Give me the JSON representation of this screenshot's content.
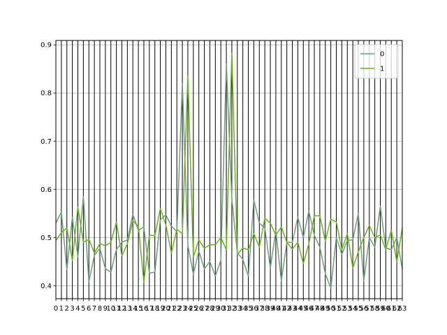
{
  "chart_data": {
    "type": "line",
    "title": "",
    "xlabel": "",
    "ylabel": "",
    "x": [
      0,
      1,
      2,
      3,
      4,
      5,
      6,
      7,
      8,
      9,
      10,
      11,
      12,
      13,
      14,
      15,
      16,
      17,
      18,
      19,
      20,
      21,
      22,
      23,
      24,
      25,
      26,
      27,
      28,
      29,
      30,
      31,
      32,
      33,
      34,
      35,
      36,
      37,
      38,
      39,
      40,
      41,
      42,
      43,
      44,
      45,
      46,
      47,
      48,
      49,
      50,
      51,
      52,
      53,
      54,
      55,
      56,
      57,
      58,
      59,
      60,
      61,
      62,
      63
    ],
    "x_tick_labels": [
      "0",
      "1",
      "2",
      "3",
      "4",
      "5",
      "6",
      "7",
      "8",
      "9",
      "10",
      "11",
      "12",
      "13",
      "14",
      "15",
      "16",
      "17",
      "18",
      "19",
      "20",
      "21",
      "22",
      "23",
      "24",
      "25",
      "26",
      "27",
      "28",
      "29",
      "30",
      "31",
      "32",
      "33",
      "34",
      "35",
      "36",
      "37",
      "38",
      "39",
      "40",
      "41",
      "42",
      "43",
      "44",
      "45",
      "46",
      "47",
      "48",
      "49",
      "50",
      "51",
      "52",
      "53",
      "54",
      "55",
      "56",
      "57",
      "58",
      "59",
      "60",
      "61",
      "62",
      "63"
    ],
    "xlim": [
      0,
      63
    ],
    "ylim": [
      0.373,
      0.909
    ],
    "y_ticks": [
      0.4,
      0.5,
      0.6,
      0.7,
      0.8,
      0.9
    ],
    "y_tick_labels": [
      "0.4",
      "0.5",
      "0.6",
      "0.7",
      "0.8",
      "0.9"
    ],
    "vertical_grid": true,
    "horizontal_grid": true,
    "legend_position": "top-right",
    "series": [
      {
        "name": "0",
        "color": "#6b9e7a",
        "values": [
          0.53,
          0.553,
          0.433,
          0.542,
          0.46,
          0.585,
          0.408,
          0.463,
          0.478,
          0.435,
          0.428,
          0.475,
          0.49,
          0.495,
          0.548,
          0.515,
          0.522,
          0.426,
          0.428,
          0.537,
          0.547,
          0.524,
          0.512,
          0.82,
          0.484,
          0.424,
          0.472,
          0.435,
          0.45,
          0.42,
          0.453,
          0.86,
          0.58,
          0.468,
          0.455,
          0.42,
          0.578,
          0.53,
          0.52,
          0.437,
          0.514,
          0.41,
          0.49,
          0.49,
          0.542,
          0.5,
          0.555,
          0.505,
          0.48,
          0.425,
          0.395,
          0.5,
          0.465,
          0.494,
          0.495,
          0.55,
          0.41,
          0.5,
          0.48,
          0.565,
          0.478,
          0.475,
          0.5,
          0.435
        ]
      },
      {
        "name": "1",
        "color": "#66b414",
        "values": [
          0.494,
          0.51,
          0.52,
          0.452,
          0.563,
          0.49,
          0.496,
          0.468,
          0.487,
          0.483,
          0.49,
          0.532,
          0.462,
          0.487,
          0.535,
          0.523,
          0.408,
          0.505,
          0.504,
          0.56,
          0.526,
          0.468,
          0.517,
          0.508,
          0.835,
          0.46,
          0.495,
          0.478,
          0.485,
          0.485,
          0.5,
          0.475,
          0.882,
          0.465,
          0.478,
          0.475,
          0.508,
          0.48,
          0.54,
          0.53,
          0.505,
          0.522,
          0.49,
          0.476,
          0.49,
          0.446,
          0.487,
          0.545,
          0.545,
          0.493,
          0.538,
          0.532,
          0.475,
          0.508,
          0.437,
          0.47,
          0.5,
          0.525,
          0.5,
          0.505,
          0.475,
          0.515,
          0.45,
          0.52
        ]
      }
    ]
  }
}
